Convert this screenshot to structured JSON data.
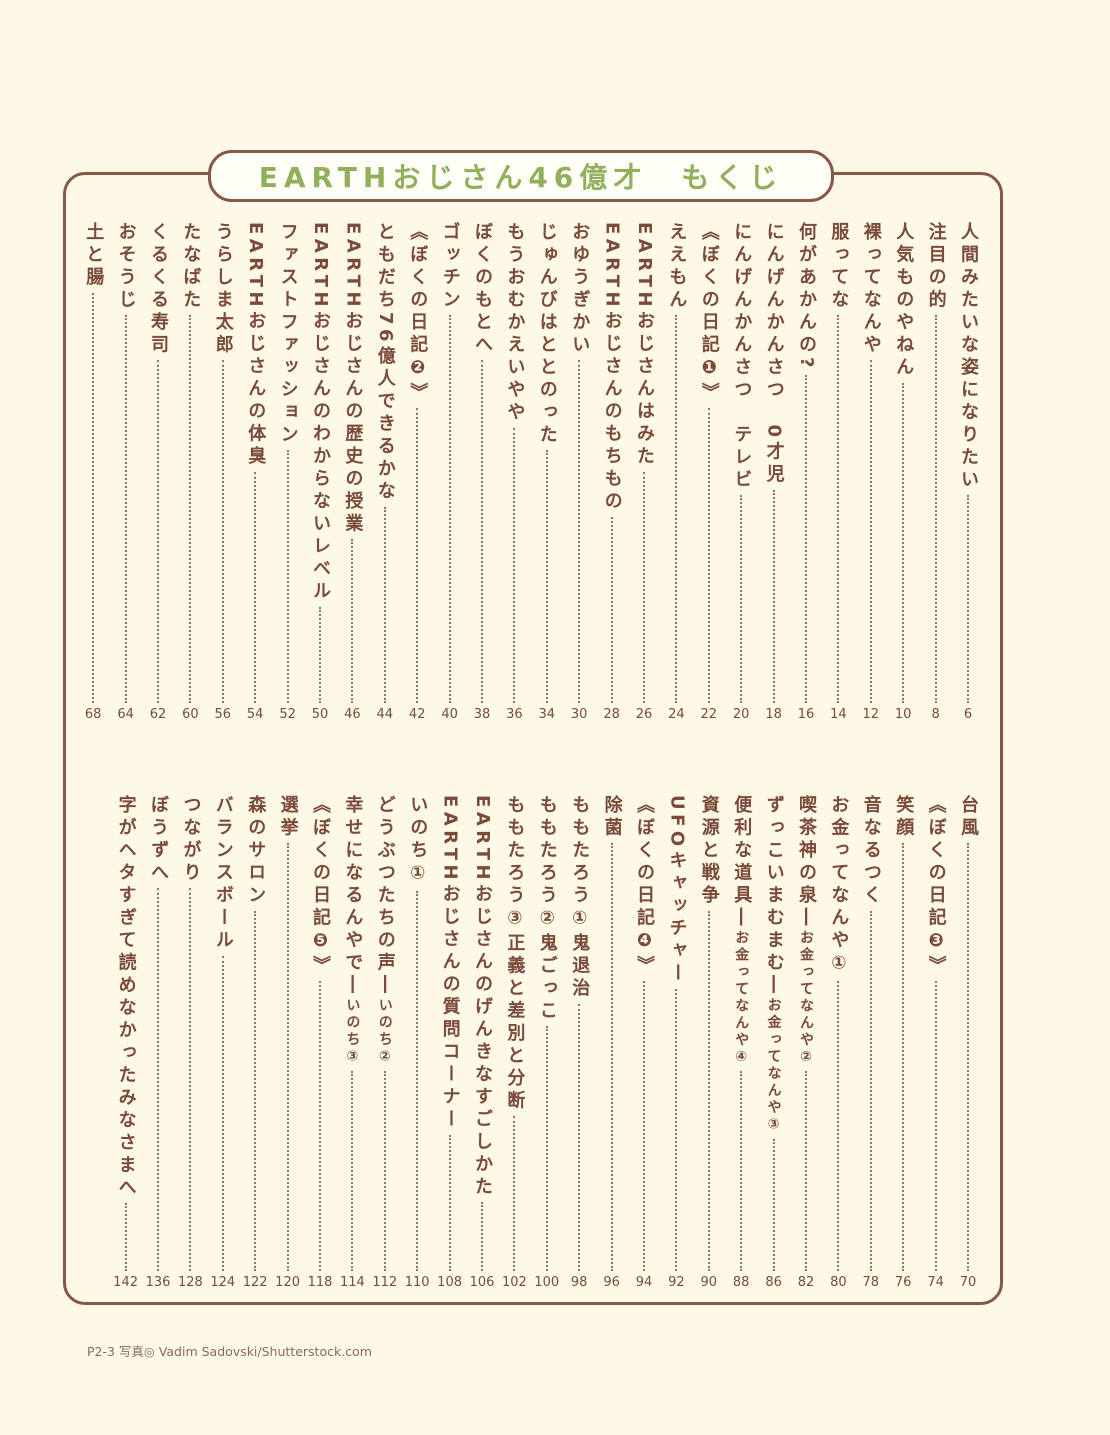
{
  "header": {
    "title": "EARTHおじさん46億才　もくじ"
  },
  "colors": {
    "background": "#fdf9e6",
    "text": "#7a4a3a",
    "title": "#92b05c",
    "frame": "#86584a"
  },
  "toc_top": [
    {
      "title": "人間みたいな姿になりたい",
      "page": "6"
    },
    {
      "title": "注目の的",
      "page": "8"
    },
    {
      "title": "人気ものやねん",
      "page": "10"
    },
    {
      "title": "裸ってなんや",
      "page": "12"
    },
    {
      "title": "服ってな",
      "page": "14"
    },
    {
      "title": "何があかんの?",
      "page": "16"
    },
    {
      "title": "にんげんかんさつ　0才児",
      "page": "18"
    },
    {
      "title": "にんげんかんさつ　テレビ",
      "page": "20"
    },
    {
      "title": "《ぼくの日記❶》",
      "page": "22"
    },
    {
      "title": "ええもん",
      "page": "24"
    },
    {
      "title": "EARTHおじさんはみた",
      "page": "26"
    },
    {
      "title": "EARTHおじさんのもちもの",
      "page": "28"
    },
    {
      "title": "おゆうぎかい",
      "page": "30"
    },
    {
      "title": "じゅんびはととのった",
      "page": "34"
    },
    {
      "title": "もうおむかえいやや",
      "page": "36"
    },
    {
      "title": "ぼくのもとへ",
      "page": "38"
    },
    {
      "title": "ゴッチン",
      "page": "40"
    },
    {
      "title": "《ぼくの日記❷》",
      "page": "42"
    },
    {
      "title": "ともだち76億人できるかな",
      "page": "44"
    },
    {
      "title": "EARTHおじさんの歴史の授業",
      "page": "46"
    },
    {
      "title": "EARTHおじさんのわからないレベル",
      "page": "50"
    },
    {
      "title": "ファストファッション",
      "page": "52"
    },
    {
      "title": "EARTHおじさんの体臭",
      "page": "54"
    },
    {
      "title": "うらしま太郎",
      "page": "56"
    },
    {
      "title": "たなばた",
      "page": "60"
    },
    {
      "title": "くるくる寿司",
      "page": "62"
    },
    {
      "title": "おそうじ",
      "page": "64"
    },
    {
      "title": "土と腸",
      "page": "68"
    }
  ],
  "toc_bottom": [
    {
      "title": "台風",
      "page": "70"
    },
    {
      "title": "《ぼくの日記❸》",
      "page": "74"
    },
    {
      "title": "笑顔",
      "page": "76"
    },
    {
      "title": "音なるつく",
      "page": "78"
    },
    {
      "title": "お金ってなんや①",
      "page": "80"
    },
    {
      "title": "喫茶神の泉―",
      "sub": "お金ってなんや②",
      "page": "82"
    },
    {
      "title": "ずっこいまむまむ―",
      "sub": "お金ってなんや③",
      "page": "86"
    },
    {
      "title": "便利な道具―",
      "sub": "お金ってなんや④",
      "page": "88"
    },
    {
      "title": "資源と戦争",
      "page": "90"
    },
    {
      "title": "UFOキャッチャー",
      "page": "92"
    },
    {
      "title": "《ぼくの日記❹》",
      "page": "94"
    },
    {
      "title": "除菌",
      "page": "96"
    },
    {
      "title": "ももたろう①鬼退治",
      "page": "98"
    },
    {
      "title": "ももたろう②鬼ごっこ",
      "page": "100"
    },
    {
      "title": "ももたろう③正義と差別と分断",
      "page": "102"
    },
    {
      "title": "EARTHおじさんのげんきなすごしかた",
      "page": "106"
    },
    {
      "title": "EARTHおじさんの質問コーナー",
      "page": "108"
    },
    {
      "title": "いのち①",
      "page": "110"
    },
    {
      "title": "どうぶつたちの声―",
      "sub": "いのち②",
      "page": "112"
    },
    {
      "title": "幸せになるんやで―",
      "sub": "いのち③",
      "page": "114"
    },
    {
      "title": "《ぼくの日記❺》",
      "page": "118"
    },
    {
      "title": "選挙",
      "page": "120"
    },
    {
      "title": "森のサロン",
      "page": "122"
    },
    {
      "title": "バランスボール",
      "page": "124"
    },
    {
      "title": "つながり",
      "page": "128"
    },
    {
      "title": "ぼうずへ",
      "page": "136"
    },
    {
      "title": "字がヘタすぎて読めなかったみなさまへ",
      "page": "142"
    }
  ],
  "footer": {
    "credit": "P2-3 写真◎ Vadim Sadovski/Shutterstock.com"
  }
}
